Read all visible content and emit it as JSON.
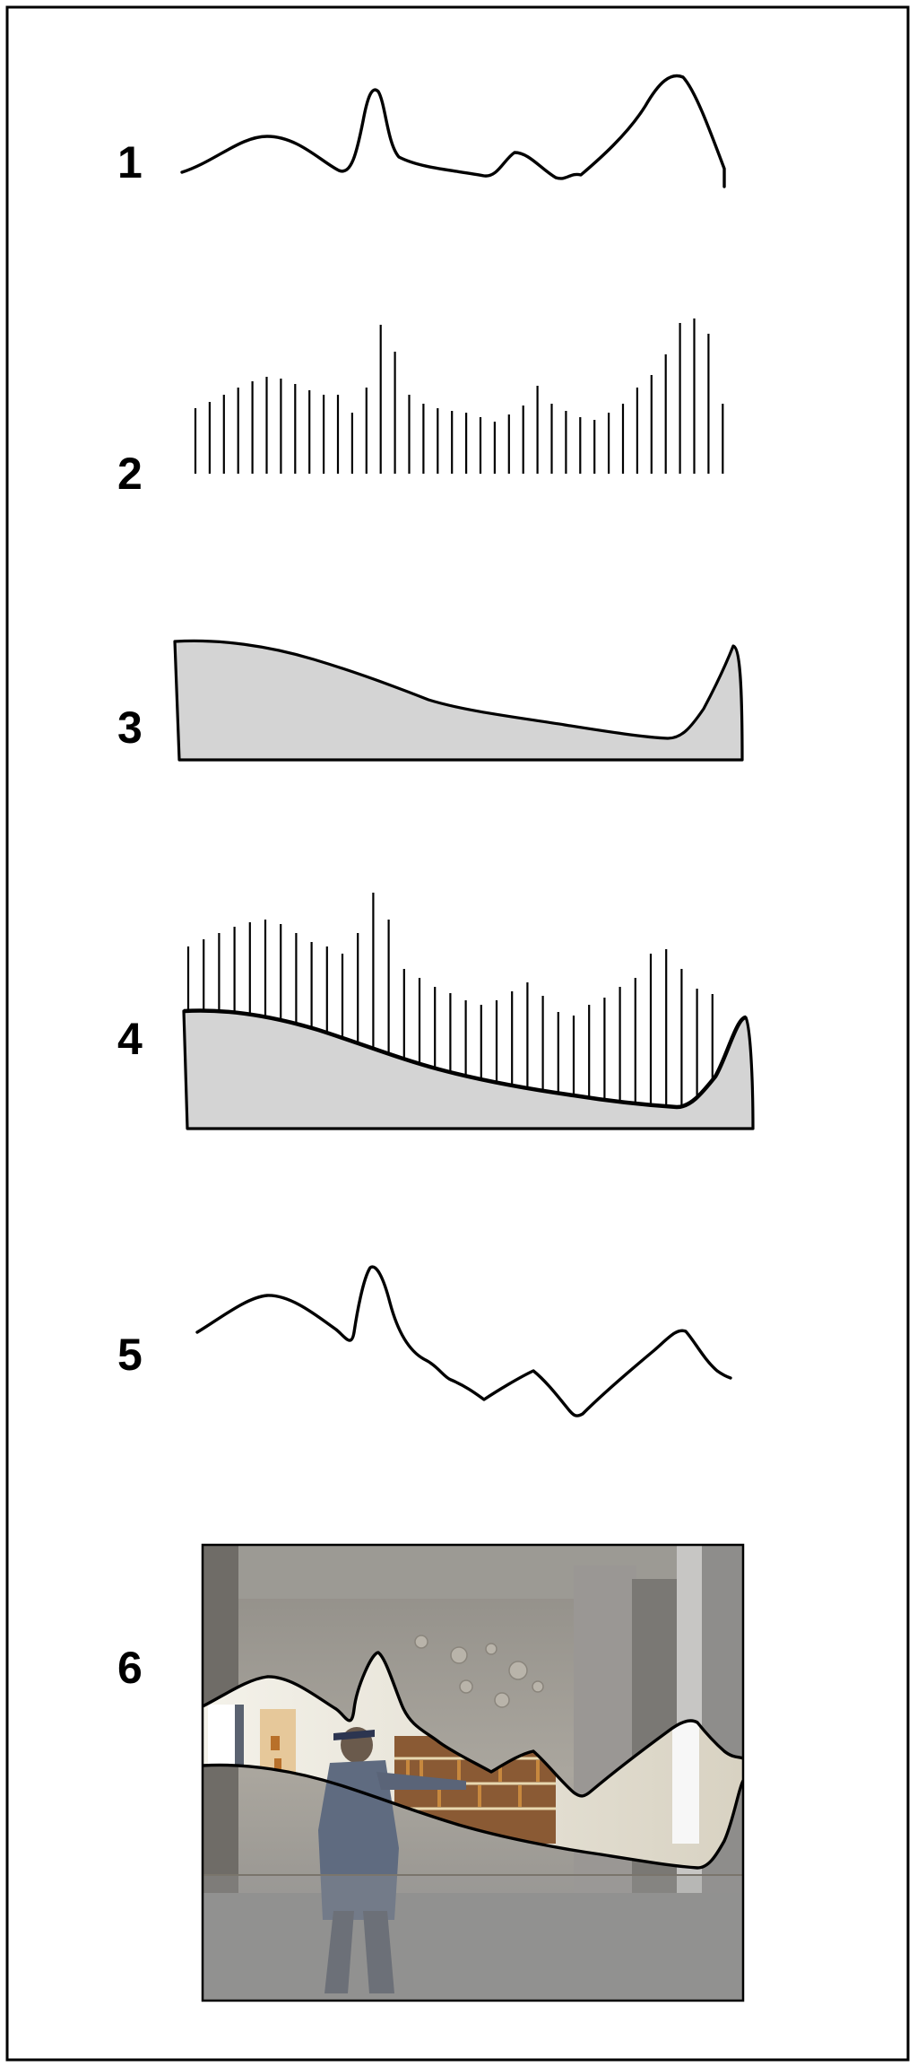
{
  "panels": [
    {
      "label": "1",
      "kind": "line-profile"
    },
    {
      "label": "2",
      "kind": "vertical-lines"
    },
    {
      "label": "3",
      "kind": "filled-area"
    },
    {
      "label": "4",
      "kind": "vertical-lines-over-filled-area"
    },
    {
      "label": "5",
      "kind": "line-profile"
    },
    {
      "label": "6",
      "kind": "curves-over-photograph"
    }
  ],
  "colors": {
    "stroke": "#000000",
    "area_fill": "#d4d4d4",
    "background": "#ffffff",
    "frame": "#000000"
  }
}
